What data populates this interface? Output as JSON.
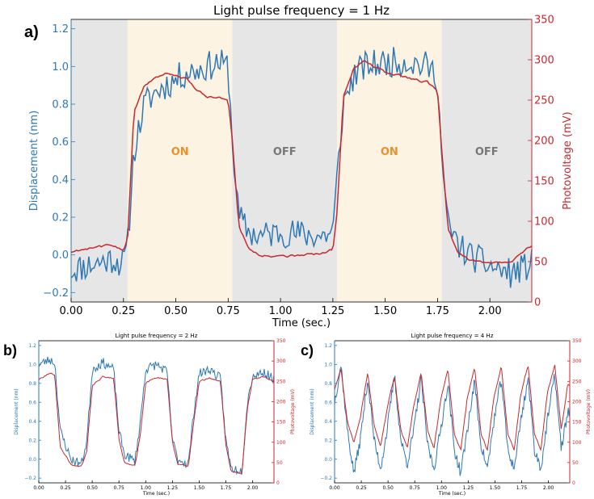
{
  "colors": {
    "displacement": "#2e78b4",
    "photovoltage": "#c8282d",
    "on_bg": "#fdf3e2",
    "off_bg": "#e6e6e6"
  },
  "chart_data": [
    {
      "panel": "a)",
      "type": "line",
      "title": "Light pulse frequency = 1 Hz",
      "xlabel": "Time (sec.)",
      "ylabel_left": "Displacement (nm)",
      "ylabel_right": "Photovoltage (mV)",
      "xlim": [
        0,
        2.2
      ],
      "ylim_left": [
        -0.25,
        1.25
      ],
      "ylim_right": [
        0,
        350
      ],
      "xticks": [
        0.0,
        0.25,
        0.5,
        0.75,
        1.0,
        1.25,
        1.5,
        1.75,
        2.0
      ],
      "xtick_labels": [
        "0.00",
        "0.25",
        "0.50",
        "0.75",
        "1.00",
        "1.25",
        "1.50",
        "1.75",
        "2.00"
      ],
      "yticks_left": [
        -0.2,
        0.0,
        0.2,
        0.4,
        0.6,
        0.8,
        1.0,
        1.2
      ],
      "ytick_labels_left": [
        "−0.2",
        "0.0",
        "0.2",
        "0.4",
        "0.6",
        "0.8",
        "1.0",
        "1.2"
      ],
      "yticks_right": [
        0,
        50,
        100,
        150,
        200,
        250,
        300,
        350
      ],
      "ytick_labels_right": [
        "0",
        "50",
        "100",
        "150",
        "200",
        "250",
        "300",
        "350"
      ],
      "regions": [
        {
          "start": 0.0,
          "end": 0.27,
          "state": "off",
          "label": ""
        },
        {
          "start": 0.27,
          "end": 0.77,
          "state": "on",
          "label": "ON"
        },
        {
          "start": 0.77,
          "end": 1.27,
          "state": "off",
          "label": "OFF"
        },
        {
          "start": 1.27,
          "end": 1.77,
          "state": "on",
          "label": "ON"
        },
        {
          "start": 1.77,
          "end": 2.2,
          "state": "off",
          "label": "OFF"
        }
      ],
      "series": [
        {
          "axis": "left",
          "x": [
            0,
            0.1,
            0.2,
            0.25,
            0.27,
            0.3,
            0.35,
            0.4,
            0.45,
            0.5,
            0.55,
            0.6,
            0.65,
            0.7,
            0.75,
            0.77,
            0.8,
            0.85,
            0.9,
            1.0,
            1.1,
            1.2,
            1.25,
            1.27,
            1.3,
            1.35,
            1.4,
            1.5,
            1.6,
            1.7,
            1.75,
            1.77,
            1.8,
            1.85,
            1.9,
            2.0,
            2.1,
            2.2
          ],
          "y": [
            -0.08,
            -0.05,
            -0.02,
            -0.05,
            0.05,
            0.55,
            0.8,
            0.86,
            0.9,
            0.93,
            0.97,
            0.98,
            1.0,
            1.02,
            1.0,
            0.6,
            0.2,
            0.12,
            0.1,
            0.12,
            0.11,
            0.1,
            0.12,
            0.4,
            0.8,
            0.95,
            1.0,
            1.02,
            1.03,
            1.0,
            0.95,
            0.5,
            0.15,
            0.05,
            0.0,
            -0.06,
            -0.1,
            -0.05
          ]
        },
        {
          "axis": "right",
          "x": [
            0,
            0.1,
            0.2,
            0.25,
            0.27,
            0.3,
            0.35,
            0.4,
            0.45,
            0.5,
            0.55,
            0.6,
            0.65,
            0.7,
            0.75,
            0.77,
            0.8,
            0.85,
            0.9,
            1.0,
            1.1,
            1.2,
            1.25,
            1.27,
            1.3,
            1.35,
            1.4,
            1.5,
            1.6,
            1.7,
            1.75,
            1.77,
            1.8,
            1.85,
            1.9,
            2.0,
            2.1,
            2.2
          ],
          "y": [
            62,
            68,
            70,
            65,
            80,
            235,
            268,
            278,
            282,
            280,
            276,
            262,
            255,
            253,
            252,
            200,
            95,
            65,
            58,
            56,
            58,
            60,
            65,
            110,
            255,
            290,
            298,
            285,
            278,
            272,
            262,
            190,
            90,
            60,
            52,
            48,
            50,
            70
          ]
        }
      ]
    },
    {
      "panel": "b)",
      "type": "line",
      "title": "Light pulse frequency = 2 Hz",
      "xlabel": "Time (sec.)",
      "ylabel_left": "Displacement (nm)",
      "ylabel_right": "Photovoltage (mV)",
      "xlim": [
        0,
        2.2
      ],
      "ylim_left": [
        -0.25,
        1.25
      ],
      "ylim_right": [
        0,
        350
      ],
      "xticks": [
        0.0,
        0.25,
        0.5,
        0.75,
        1.0,
        1.25,
        1.5,
        1.75,
        2.0
      ],
      "xtick_labels": [
        "0.00",
        "0.25",
        "0.50",
        "0.75",
        "1.00",
        "1.25",
        "1.50",
        "1.75",
        "2.00"
      ],
      "yticks_left": [
        -0.2,
        0.0,
        0.2,
        0.4,
        0.6,
        0.8,
        1.0,
        1.2
      ],
      "ytick_labels_left": [
        "−0.2",
        "0.0",
        "0.2",
        "0.4",
        "0.6",
        "0.8",
        "1.0",
        "1.2"
      ],
      "yticks_right": [
        0,
        50,
        100,
        150,
        200,
        250,
        300,
        350
      ],
      "ytick_labels_right": [
        "0",
        "50",
        "100",
        "150",
        "200",
        "250",
        "300",
        "350"
      ],
      "series": [
        {
          "axis": "left",
          "x": [
            0,
            0.1,
            0.15,
            0.2,
            0.3,
            0.4,
            0.45,
            0.5,
            0.6,
            0.7,
            0.75,
            0.8,
            0.9,
            0.95,
            1.0,
            1.1,
            1.2,
            1.25,
            1.3,
            1.4,
            1.45,
            1.5,
            1.6,
            1.7,
            1.75,
            1.8,
            1.9,
            1.95,
            2.0,
            2.1,
            2.2
          ],
          "y": [
            1.0,
            1.05,
            1.02,
            0.3,
            0.0,
            -0.05,
            0.2,
            0.95,
            1.02,
            0.95,
            0.3,
            0.05,
            -0.02,
            0.4,
            0.95,
            1.0,
            0.92,
            0.2,
            0.0,
            -0.05,
            0.5,
            0.9,
            0.95,
            0.85,
            0.2,
            -0.1,
            -0.12,
            0.6,
            0.88,
            0.92,
            0.85
          ]
        },
        {
          "axis": "right",
          "x": [
            0,
            0.1,
            0.15,
            0.2,
            0.3,
            0.4,
            0.45,
            0.5,
            0.6,
            0.7,
            0.75,
            0.8,
            0.9,
            0.95,
            1.0,
            1.1,
            1.2,
            1.25,
            1.3,
            1.4,
            1.45,
            1.5,
            1.6,
            1.7,
            1.75,
            1.8,
            1.9,
            1.95,
            2.0,
            2.1,
            2.2
          ],
          "y": [
            255,
            270,
            265,
            90,
            45,
            40,
            80,
            240,
            262,
            258,
            110,
            50,
            42,
            120,
            245,
            260,
            255,
            100,
            45,
            40,
            150,
            250,
            258,
            250,
            95,
            30,
            25,
            180,
            255,
            262,
            250
          ]
        }
      ]
    },
    {
      "panel": "c)",
      "type": "line",
      "title": "Light pulse frequency = 4 Hz",
      "xlabel": "Time (sec.)",
      "ylabel_left": "Displacement (nm)",
      "ylabel_right": "Photovoltage (mV)",
      "xlim": [
        0,
        2.2
      ],
      "ylim_left": [
        -0.25,
        1.25
      ],
      "ylim_right": [
        0,
        350
      ],
      "xticks": [
        0.0,
        0.25,
        0.5,
        0.75,
        1.0,
        1.25,
        1.5,
        1.75,
        2.0
      ],
      "xtick_labels": [
        "0.00",
        "0.25",
        "0.50",
        "0.75",
        "1.00",
        "1.25",
        "1.50",
        "1.75",
        "2.00"
      ],
      "yticks_left": [
        -0.2,
        0.0,
        0.2,
        0.4,
        0.6,
        0.8,
        1.0,
        1.2
      ],
      "ytick_labels_left": [
        "−0.2",
        "0.0",
        "0.2",
        "0.4",
        "0.6",
        "0.8",
        "1.0",
        "1.2"
      ],
      "yticks_right": [
        0,
        50,
        100,
        150,
        200,
        250,
        300,
        350
      ],
      "ytick_labels_right": [
        "0",
        "50",
        "100",
        "150",
        "200",
        "250",
        "300",
        "350"
      ],
      "series": [
        {
          "axis": "left",
          "x": [
            0,
            0.06,
            0.12,
            0.18,
            0.24,
            0.31,
            0.37,
            0.43,
            0.49,
            0.56,
            0.62,
            0.68,
            0.74,
            0.81,
            0.87,
            0.93,
            0.99,
            1.06,
            1.12,
            1.18,
            1.24,
            1.31,
            1.37,
            1.43,
            1.49,
            1.56,
            1.62,
            1.68,
            1.74,
            1.81,
            1.87,
            1.93,
            1.99,
            2.06,
            2.12,
            2.18
          ],
          "y": [
            0.6,
            1.0,
            0.3,
            -0.15,
            0.2,
            0.85,
            0.2,
            -0.1,
            0.3,
            0.88,
            0.2,
            -0.05,
            0.3,
            0.85,
            0.15,
            -0.1,
            0.3,
            0.8,
            0.1,
            -0.15,
            0.3,
            0.82,
            0.15,
            -0.1,
            0.4,
            0.85,
            0.1,
            -0.1,
            0.4,
            0.85,
            0.1,
            -0.1,
            0.4,
            0.9,
            0.1,
            0.5
          ]
        },
        {
          "axis": "right",
          "x": [
            0,
            0.06,
            0.12,
            0.18,
            0.24,
            0.31,
            0.37,
            0.43,
            0.49,
            0.56,
            0.62,
            0.68,
            0.74,
            0.81,
            0.87,
            0.93,
            0.99,
            1.06,
            1.12,
            1.18,
            1.24,
            1.31,
            1.37,
            1.43,
            1.49,
            1.56,
            1.62,
            1.68,
            1.74,
            1.81,
            1.87,
            1.93,
            1.99,
            2.06,
            2.12,
            2.18
          ],
          "y": [
            230,
            280,
            150,
            100,
            160,
            270,
            140,
            90,
            180,
            265,
            130,
            85,
            190,
            270,
            130,
            85,
            200,
            280,
            120,
            80,
            205,
            285,
            120,
            80,
            210,
            288,
            120,
            80,
            215,
            290,
            120,
            80,
            220,
            292,
            130,
            240
          ]
        }
      ]
    }
  ]
}
